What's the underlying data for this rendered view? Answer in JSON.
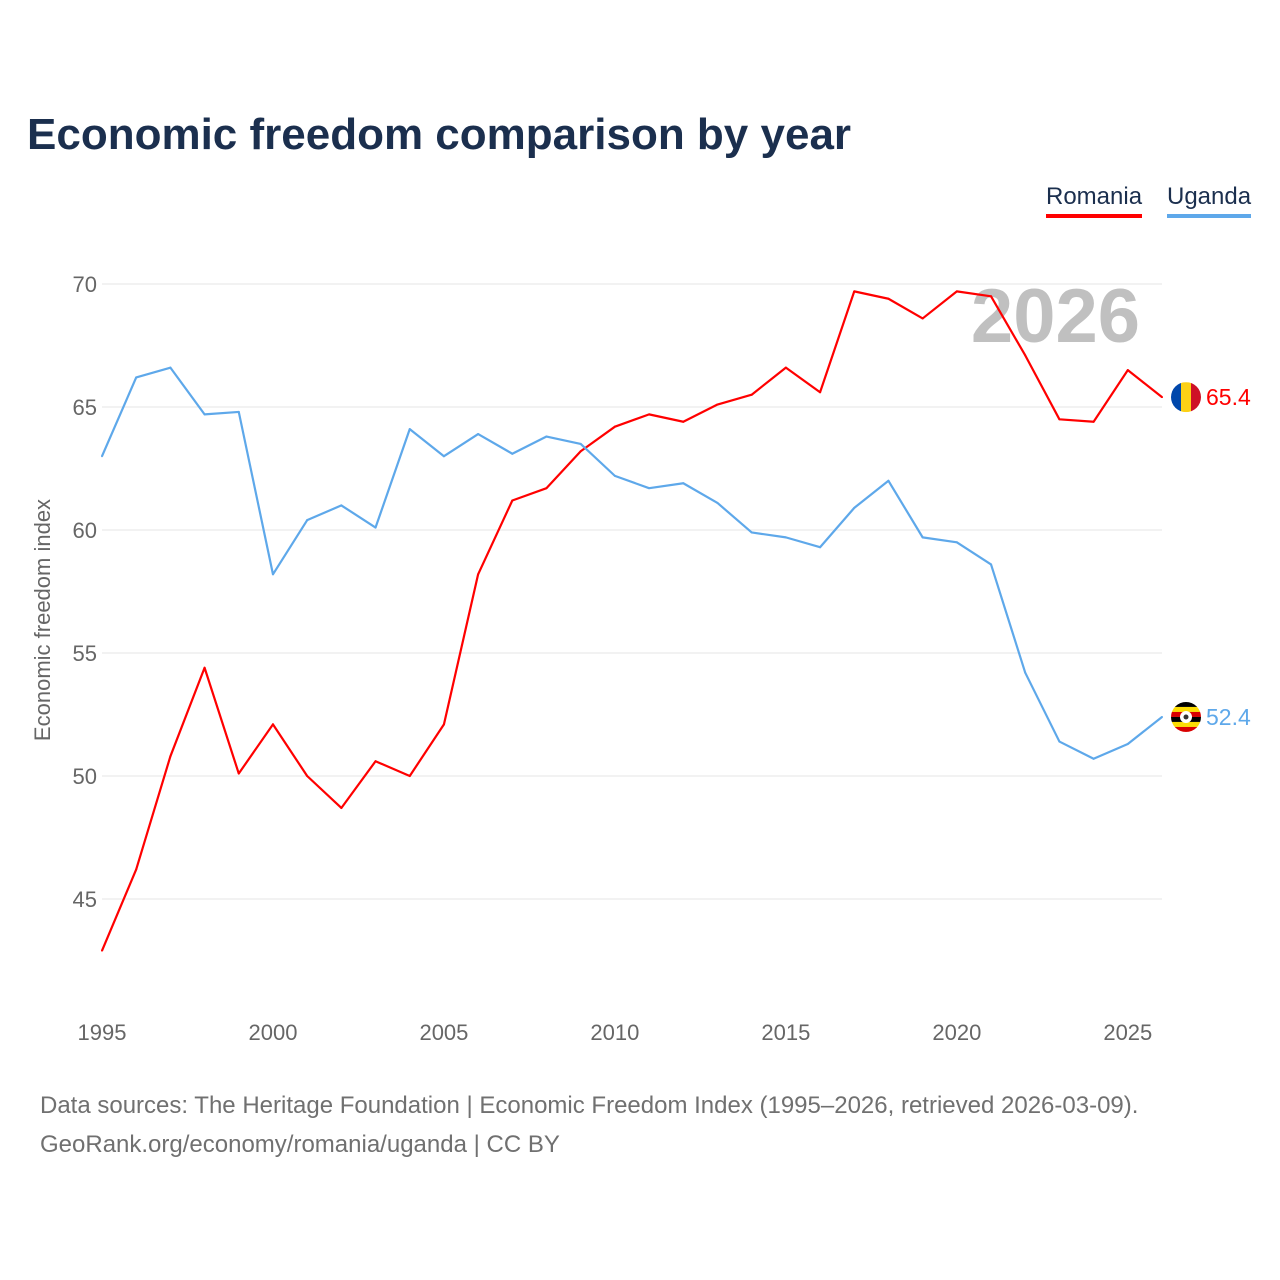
{
  "title": "Economic freedom comparison by year",
  "footer": {
    "line1": "Data sources: The Heritage Foundation | Economic Freedom Index (1995–2026, retrieved 2026-03-09).",
    "line2": "GeoRank.org/economy/romania/uganda | CC BY"
  },
  "chart_data": {
    "type": "line",
    "title": "Economic freedom comparison by year",
    "xlabel": "",
    "ylabel": "Economic freedom index",
    "watermark_year": "2026",
    "xlim": [
      1995,
      2026
    ],
    "ylim": [
      42.9,
      70
    ],
    "yticks": [
      "45",
      "50",
      "55",
      "60",
      "65",
      "70"
    ],
    "xticks": [
      "1995",
      "2000",
      "2005",
      "2010",
      "2015",
      "2020",
      "2025"
    ],
    "legend_position": "top-right",
    "grid": true,
    "x": [
      1995,
      1996,
      1997,
      1998,
      1999,
      2000,
      2001,
      2002,
      2003,
      2004,
      2005,
      2006,
      2007,
      2008,
      2009,
      2010,
      2011,
      2012,
      2013,
      2014,
      2015,
      2016,
      2017,
      2018,
      2019,
      2020,
      2021,
      2022,
      2023,
      2024,
      2025,
      2026
    ],
    "series": [
      {
        "name": "Romania",
        "color": "#ff0000",
        "end_label": "65.4",
        "flag": "romania-flag",
        "values": [
          42.9,
          46.2,
          50.8,
          54.4,
          50.1,
          52.1,
          50.0,
          48.7,
          50.6,
          50.0,
          52.1,
          58.2,
          61.2,
          61.7,
          63.2,
          64.2,
          64.7,
          64.4,
          65.1,
          65.5,
          66.6,
          65.6,
          69.7,
          69.4,
          68.6,
          69.7,
          69.5,
          67.1,
          64.5,
          64.4,
          66.5,
          65.4
        ]
      },
      {
        "name": "Uganda",
        "color": "#5ea8ea",
        "end_label": "52.4",
        "flag": "uganda-flag",
        "values": [
          63.0,
          66.2,
          66.6,
          64.7,
          64.8,
          58.2,
          60.4,
          61.0,
          60.1,
          64.1,
          63.0,
          63.9,
          63.1,
          63.8,
          63.5,
          62.2,
          61.7,
          61.9,
          61.1,
          59.9,
          59.7,
          59.3,
          60.9,
          62.0,
          59.7,
          59.5,
          58.6,
          54.2,
          51.4,
          50.7,
          51.3,
          52.4
        ]
      }
    ]
  }
}
